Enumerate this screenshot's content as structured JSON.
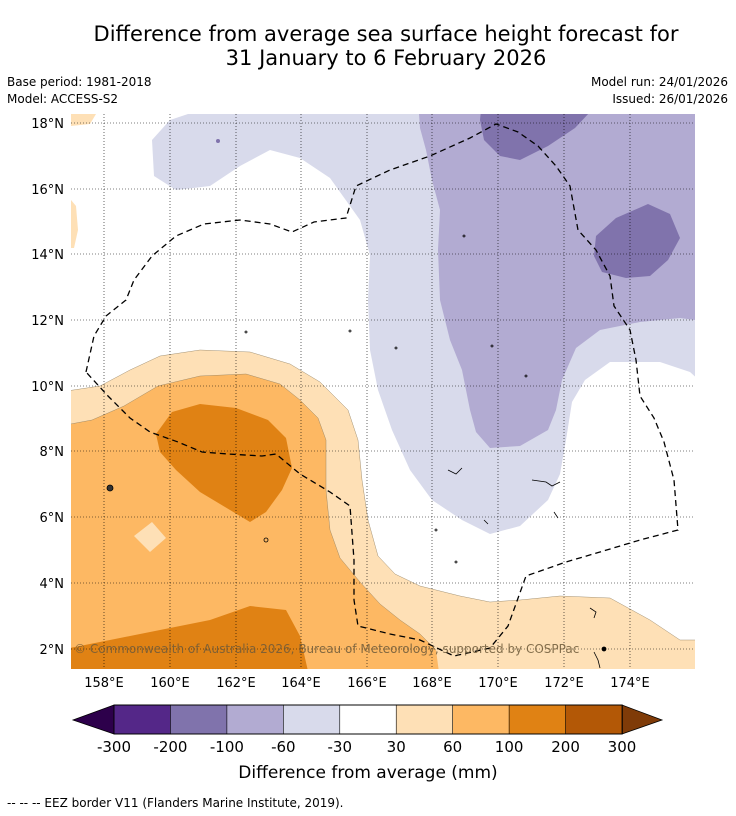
{
  "title_line1": "Difference from average sea surface height forecast for",
  "title_line2": "31 January to 6 February 2026",
  "base_period": "Base period: 1981-2018",
  "model": "Model: ACCESS-S2",
  "model_run": "Model run: 24/01/2026",
  "issued": "Issued: 26/01/2026",
  "copyright": "© Commonwealth of Australia 2026, Bureau of Meteorology, supported by COSPPac",
  "lat_labels": [
    "18°N",
    "16°N",
    "14°N",
    "12°N",
    "10°N",
    "8°N",
    "6°N",
    "4°N",
    "2°N"
  ],
  "lon_labels": [
    "158°E",
    "160°E",
    "162°E",
    "164°E",
    "166°E",
    "168°E",
    "170°E",
    "172°E",
    "174°E"
  ],
  "colorbar": {
    "title": "Difference from average (mm)",
    "tick_labels": [
      "-300",
      "-200",
      "-100",
      "-60",
      "-30",
      "30",
      "60",
      "100",
      "200",
      "300"
    ],
    "low_extend_color": "#2d004b",
    "high_extend_color": "#7f3b08",
    "colors": [
      "#542788",
      "#8073ac",
      "#b2abd2",
      "#d8daeb",
      "#ffffff",
      "#fee0b6",
      "#fdb863",
      "#e08214",
      "#b35806"
    ]
  },
  "legend_note": "-- -- -- EEZ border V11 (Flanders Marine Institute, 2019)."
}
